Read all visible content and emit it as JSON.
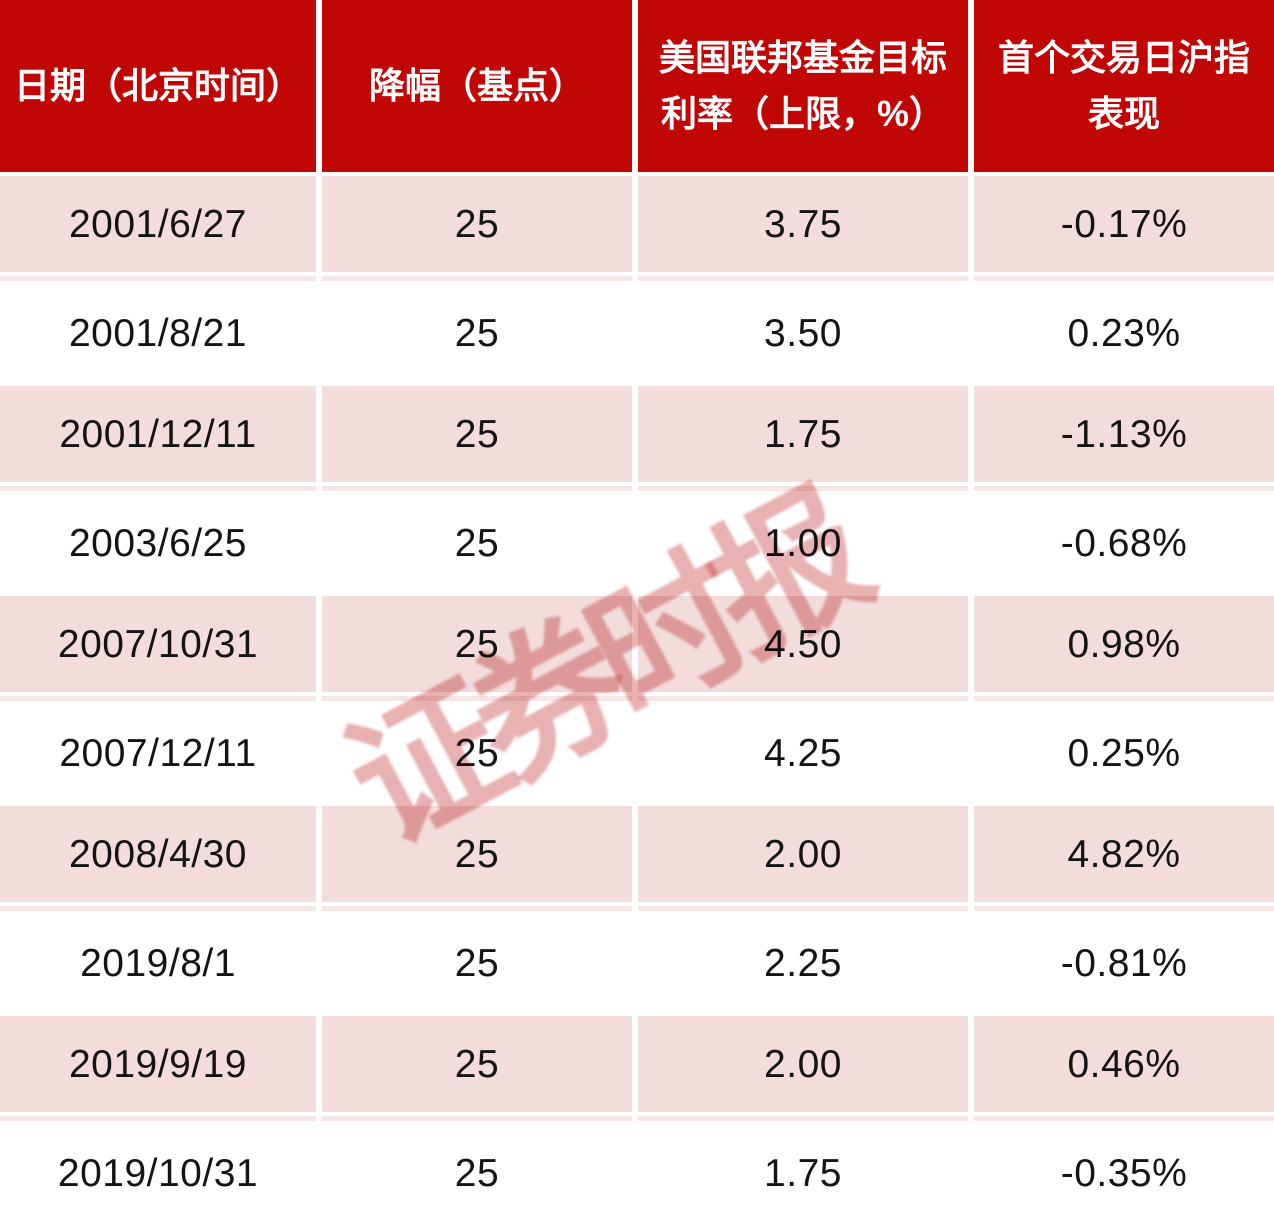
{
  "table": {
    "columns": [
      {
        "name": "date",
        "lines": [
          "日期（北京时间）"
        ]
      },
      {
        "name": "cut-bps",
        "lines": [
          "降幅（基点）"
        ]
      },
      {
        "name": "target-rate",
        "lines": [
          "美国联邦基金目标",
          "利率（上限，%）"
        ]
      },
      {
        "name": "shci-perf",
        "lines": [
          "首个交易日沪指",
          "表现"
        ]
      }
    ],
    "rows": [
      [
        "2001/6/27",
        "25",
        "3.75",
        "-0.17%"
      ],
      [
        "2001/8/21",
        "25",
        "3.50",
        "0.23%"
      ],
      [
        "2001/12/11",
        "25",
        "1.75",
        "-1.13%"
      ],
      [
        "2003/6/25",
        "25",
        "1.00",
        "-0.68%"
      ],
      [
        "2007/10/31",
        "25",
        "4.50",
        "0.98%"
      ],
      [
        "2007/12/11",
        "25",
        "4.25",
        "0.25%"
      ],
      [
        "2008/4/30",
        "25",
        "2.00",
        "4.82%"
      ],
      [
        "2019/8/1",
        "25",
        "2.25",
        "-0.81%"
      ],
      [
        "2019/9/19",
        "25",
        "2.00",
        "0.46%"
      ],
      [
        "2019/10/31",
        "25",
        "1.75",
        "-0.35%"
      ]
    ]
  },
  "watermark": {
    "text": "证券时报"
  },
  "colors": {
    "header_bg": "#c10606",
    "header_text": "#ffffff",
    "row_pink": "#f2dcdc",
    "separator_pink": "#f7e6e6",
    "body_text": "#141414",
    "watermark": "rgba(201,62,62,0.40)"
  },
  "chart_data": {
    "type": "table",
    "title": "",
    "columns": [
      "日期（北京时间）",
      "降幅（基点）",
      "美国联邦基金目标利率（上限，%）",
      "首个交易日沪指表现"
    ],
    "rows": [
      [
        "2001/6/27",
        25,
        3.75,
        "-0.17%"
      ],
      [
        "2001/8/21",
        25,
        3.5,
        "0.23%"
      ],
      [
        "2001/12/11",
        25,
        1.75,
        "-1.13%"
      ],
      [
        "2003/6/25",
        25,
        1.0,
        "-0.68%"
      ],
      [
        "2007/10/31",
        25,
        4.5,
        "0.98%"
      ],
      [
        "2007/12/11",
        25,
        4.25,
        "0.25%"
      ],
      [
        "2008/4/30",
        25,
        2.0,
        "4.82%"
      ],
      [
        "2019/8/1",
        25,
        2.25,
        "-0.81%"
      ],
      [
        "2019/9/19",
        25,
        2.0,
        "0.46%"
      ],
      [
        "2019/10/31",
        25,
        1.75,
        "-0.35%"
      ]
    ],
    "layout": {
      "striped": true,
      "stripe_pattern": "pink-white-alternating",
      "header_style": "solid-red"
    }
  }
}
